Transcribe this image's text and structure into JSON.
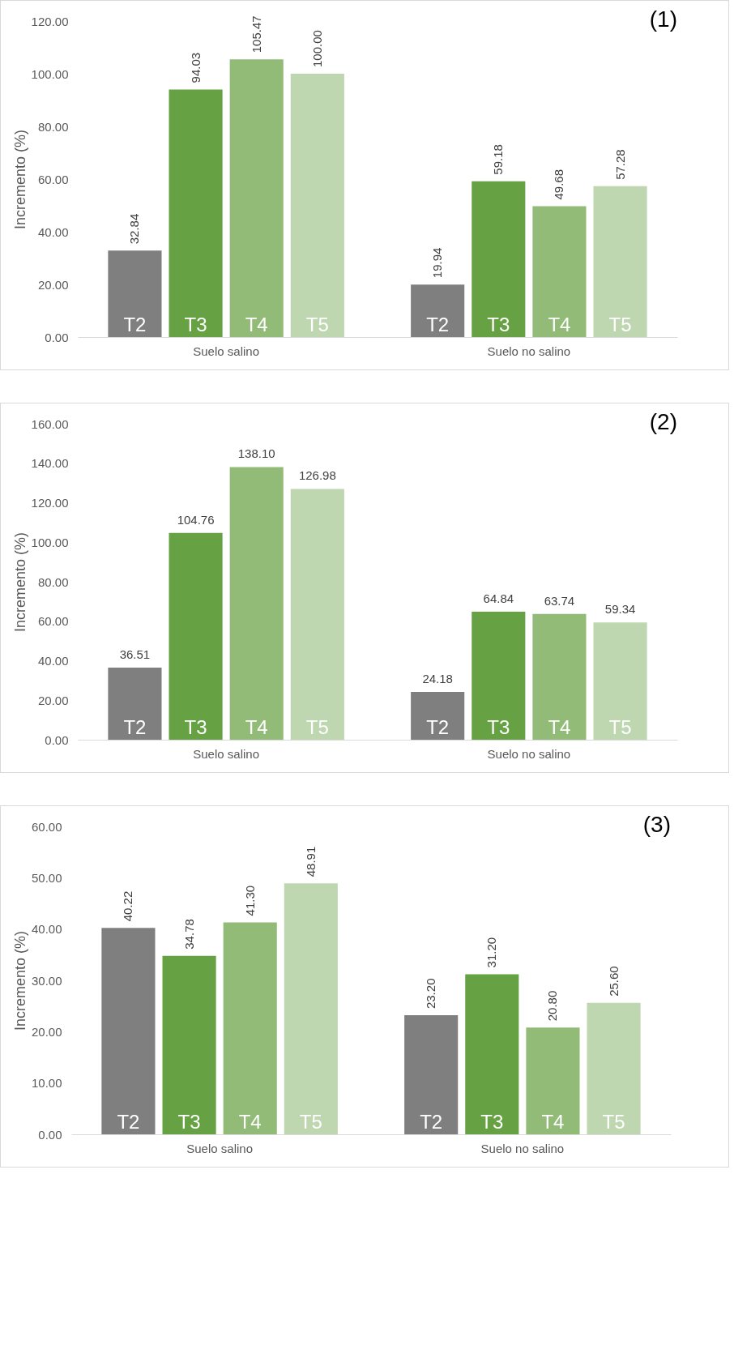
{
  "chart_data": [
    {
      "type": "bar",
      "title": "(1)",
      "ylabel": "Incremento (%)",
      "categories": [
        "Suelo salino",
        "Suelo no salino"
      ],
      "ylim": [
        0,
        120
      ],
      "yticks": [
        {
          "value": 0,
          "label": "0.00"
        },
        {
          "value": 20,
          "label": "20.00"
        },
        {
          "value": 40,
          "label": "40.00"
        },
        {
          "value": 60,
          "label": "60.00"
        },
        {
          "value": 80,
          "label": "80.00"
        },
        {
          "value": 100,
          "label": "100.00"
        },
        {
          "value": 120,
          "label": "120.00"
        }
      ],
      "grid": false,
      "legend": false,
      "series": [
        {
          "name": "T2",
          "color": "#7f7f7f",
          "values": [
            32.84,
            19.94
          ],
          "value_labels": [
            "32.84",
            "19.94"
          ]
        },
        {
          "name": "T3",
          "color": "#66a243",
          "values": [
            94.03,
            59.18
          ],
          "value_labels": [
            "94.03",
            "59.18"
          ]
        },
        {
          "name": "T4",
          "color": "#92bb78",
          "values": [
            105.47,
            49.68
          ],
          "value_labels": [
            "105.47",
            "49.68"
          ]
        },
        {
          "name": "T5",
          "color": "#bed7b0",
          "values": [
            100.0,
            57.28
          ],
          "value_labels": [
            "100.00",
            "57.28"
          ]
        }
      ]
    },
    {
      "type": "bar",
      "title": "(2)",
      "ylabel": "Incremento (%)",
      "categories": [
        "Suelo salino",
        "Suelo no salino"
      ],
      "ylim": [
        0,
        160
      ],
      "yticks": [
        {
          "value": 0,
          "label": "0.00"
        },
        {
          "value": 20,
          "label": "20.00"
        },
        {
          "value": 40,
          "label": "40.00"
        },
        {
          "value": 60,
          "label": "60.00"
        },
        {
          "value": 80,
          "label": "80.00"
        },
        {
          "value": 100,
          "label": "100.00"
        },
        {
          "value": 120,
          "label": "120.00"
        },
        {
          "value": 140,
          "label": "140.00"
        },
        {
          "value": 160,
          "label": "160.00"
        }
      ],
      "grid": false,
      "legend": false,
      "series": [
        {
          "name": "T2",
          "color": "#7f7f7f",
          "values": [
            36.51,
            24.18
          ],
          "value_labels": [
            "36.51",
            "24.18"
          ]
        },
        {
          "name": "T3",
          "color": "#66a243",
          "values": [
            104.76,
            64.84
          ],
          "value_labels": [
            "104.76",
            "64.84"
          ]
        },
        {
          "name": "T4",
          "color": "#92bb78",
          "values": [
            138.1,
            63.74
          ],
          "value_labels": [
            "138.10",
            "63.74"
          ]
        },
        {
          "name": "T5",
          "color": "#bed7b0",
          "values": [
            126.98,
            59.34
          ],
          "value_labels": [
            "126.98",
            "59.34"
          ]
        }
      ]
    },
    {
      "type": "bar",
      "title": "(3)",
      "ylabel": "Incremento (%)",
      "categories": [
        "Suelo salino",
        "Suelo no salino"
      ],
      "ylim": [
        0,
        60
      ],
      "yticks": [
        {
          "value": 0,
          "label": "0.00"
        },
        {
          "value": 10,
          "label": "10.00"
        },
        {
          "value": 20,
          "label": "20.00"
        },
        {
          "value": 30,
          "label": "30.00"
        },
        {
          "value": 40,
          "label": "40.00"
        },
        {
          "value": 50,
          "label": "50.00"
        },
        {
          "value": 60,
          "label": "60.00"
        }
      ],
      "grid": false,
      "legend": false,
      "series": [
        {
          "name": "T2",
          "color": "#7f7f7f",
          "values": [
            40.22,
            23.2
          ],
          "value_labels": [
            "40.22",
            "23.20"
          ]
        },
        {
          "name": "T3",
          "color": "#66a243",
          "values": [
            34.78,
            31.2
          ],
          "value_labels": [
            "34.78",
            "31.20"
          ]
        },
        {
          "name": "T4",
          "color": "#92bb78",
          "values": [
            41.3,
            20.8
          ],
          "value_labels": [
            "41.30",
            "20.80"
          ]
        },
        {
          "name": "T5",
          "color": "#bed7b0",
          "values": [
            48.91,
            25.6
          ],
          "value_labels": [
            "48.91",
            "25.60"
          ]
        }
      ]
    }
  ]
}
